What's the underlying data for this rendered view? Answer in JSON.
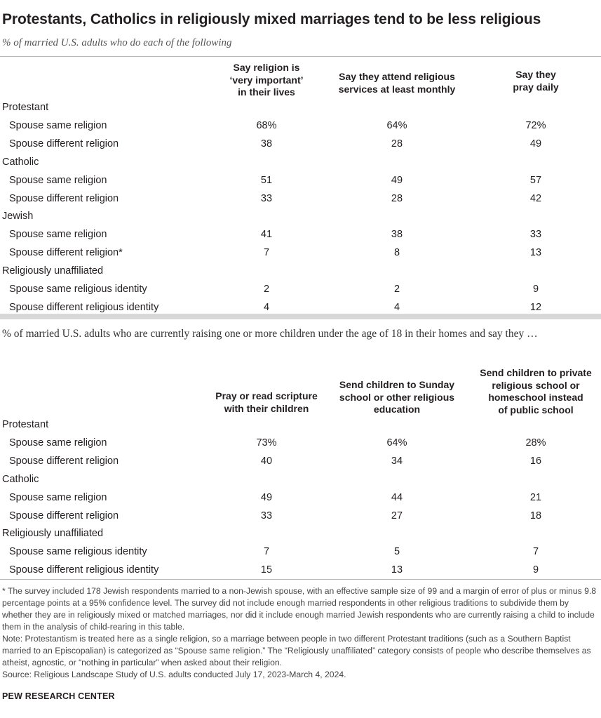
{
  "title": "Protestants, Catholics in religiously mixed marriages tend to be less religious",
  "subtitle": "% of married U.S. adults who do each of the following",
  "chart_data": [
    {
      "type": "table",
      "columns": [
        "Say religion is ‘very important’ in their lives",
        "Say they attend religious services at least monthly",
        "Say they pray daily"
      ],
      "header_lines": [
        [
          "Say religion is",
          "‘very important’",
          "in their lives"
        ],
        [
          "Say they attend religious",
          "services at least monthly"
        ],
        [
          "Say they",
          "pray daily"
        ]
      ],
      "rows": [
        {
          "label": "Protestant",
          "group": true
        },
        {
          "label": "Spouse same religion",
          "values": [
            "68%",
            "64%",
            "72%"
          ]
        },
        {
          "label": "Spouse different religion",
          "values": [
            "38",
            "28",
            "49"
          ]
        },
        {
          "label": "Catholic",
          "group": true
        },
        {
          "label": "Spouse same religion",
          "values": [
            "51",
            "49",
            "57"
          ]
        },
        {
          "label": "Spouse different religion",
          "values": [
            "33",
            "28",
            "42"
          ]
        },
        {
          "label": "Jewish",
          "group": true
        },
        {
          "label": "Spouse same religion",
          "values": [
            "41",
            "38",
            "33"
          ]
        },
        {
          "label": "Spouse different religion*",
          "values": [
            "7",
            "8",
            "13"
          ]
        },
        {
          "label": "Religiously unaffiliated",
          "group": true
        },
        {
          "label": "Spouse same religious identity",
          "values": [
            "2",
            "2",
            "9"
          ]
        },
        {
          "label": "Spouse different religious identity",
          "values": [
            "4",
            "4",
            "12"
          ]
        }
      ]
    },
    {
      "type": "table",
      "intro": "% of married U.S. adults who are currently raising one or more children under the age of 18 in their homes and say they …",
      "columns": [
        "Pray or read scripture with their children",
        "Send children to Sunday school or other religious education",
        "Send children to private religious school or homeschool instead of public school"
      ],
      "header_lines": [
        [
          "Pray or read scripture",
          "with their children"
        ],
        [
          "Send children to Sunday",
          "school or other religious",
          "education"
        ],
        [
          "Send children to private",
          "religious school or",
          "homeschool instead",
          "of public school"
        ]
      ],
      "rows": [
        {
          "label": "Protestant",
          "group": true
        },
        {
          "label": "Spouse same religion",
          "values": [
            "73%",
            "64%",
            "28%"
          ]
        },
        {
          "label": "Spouse different religion",
          "values": [
            "40",
            "34",
            "16"
          ]
        },
        {
          "label": "Catholic",
          "group": true
        },
        {
          "label": "Spouse same religion",
          "values": [
            "49",
            "44",
            "21"
          ]
        },
        {
          "label": "Spouse different religion",
          "values": [
            "33",
            "27",
            "18"
          ]
        },
        {
          "label": "Religiously unaffiliated",
          "group": true
        },
        {
          "label": "Spouse same religious identity",
          "values": [
            "7",
            "5",
            "7"
          ]
        },
        {
          "label": "Spouse different religious identity",
          "values": [
            "15",
            "13",
            "9"
          ]
        }
      ]
    }
  ],
  "footnote": "* The survey included 178 Jewish respondents married to a non-Jewish spouse, with an effective sample size of 99 and a margin of error of plus or minus 9.8 percentage points at a 95% confidence level. The survey did not include enough married respondents in other religious traditions to subdivide them by whether they are in religiously mixed or matched marriages, nor did it include enough married Jewish respondents who are currently raising a child to include them in the analysis of child-rearing in this table.",
  "note": "Note: Protestantism is treated here as a single religion, so a marriage between people in two different Protestant traditions (such as a Southern Baptist married to an Episcopalian) is categorized as “Spouse same religion.” The “Religiously unaffiliated” category consists of people who describe themselves as atheist, agnostic, or “nothing in particular” when asked about their religion.",
  "source": "Source: Religious Landscape Study of U.S. adults conducted July 17, 2023-March 4, 2024.",
  "brand": "PEW RESEARCH CENTER"
}
